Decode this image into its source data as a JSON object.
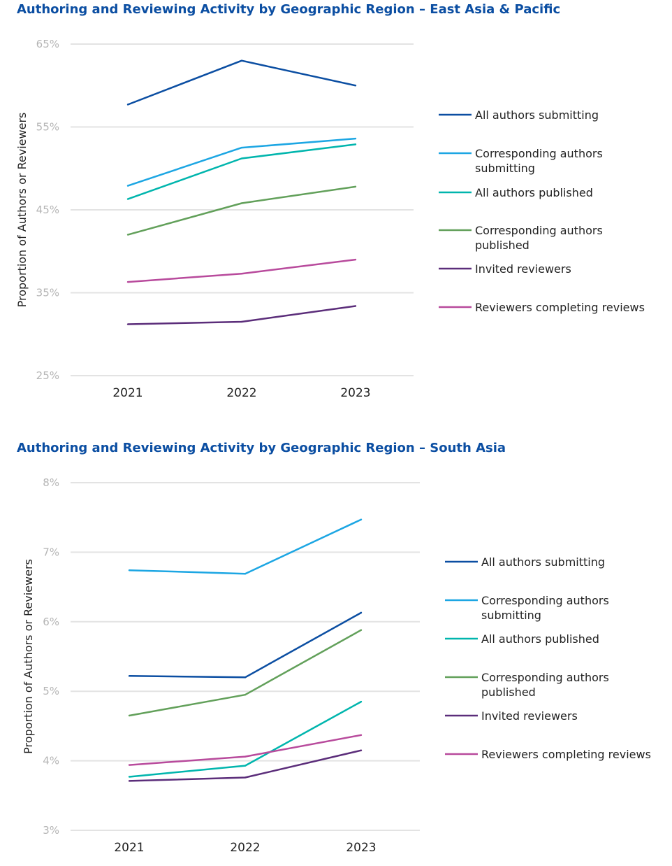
{
  "chart_data": [
    {
      "type": "line",
      "title": "Authoring and Reviewing Activity by Geographic Region – East Asia & Pacific",
      "xlabel": "",
      "ylabel": "Proportion of Authors or Reviewers",
      "categories": [
        "2021",
        "2022",
        "2023"
      ],
      "ylim": [
        25,
        65
      ],
      "yticks": [
        "25%",
        "35%",
        "45%",
        "55%",
        "65%"
      ],
      "ytick_values": [
        25,
        35,
        45,
        55,
        65
      ],
      "grid": true,
      "legend_position": "right",
      "series": [
        {
          "name": "All authors submitting",
          "label_lines": [
            "All authors submitting"
          ],
          "color": "#0b4ea2",
          "values": [
            57.7,
            63.0,
            60.0
          ]
        },
        {
          "name": "Corresponding authors submitting",
          "label_lines": [
            "Corresponding authors",
            "submitting"
          ],
          "color": "#1ca6e3",
          "values": [
            47.9,
            52.5,
            53.6
          ]
        },
        {
          "name": "All authors published",
          "label_lines": [
            "All authors published"
          ],
          "color": "#00b5ad",
          "values": [
            46.3,
            51.2,
            52.9
          ]
        },
        {
          "name": "Corresponding authors published",
          "label_lines": [
            "Corresponding authors",
            "published"
          ],
          "color": "#62a05a",
          "values": [
            42.0,
            45.8,
            47.8
          ]
        },
        {
          "name": "Invited reviewers",
          "label_lines": [
            "Invited reviewers"
          ],
          "color": "#5b2d7a",
          "values": [
            31.2,
            31.5,
            33.4
          ]
        },
        {
          "name": "Reviewers completing reviews",
          "label_lines": [
            "Reviewers completing reviews"
          ],
          "color": "#b84a9c",
          "values": [
            36.3,
            37.3,
            39.0
          ]
        }
      ]
    },
    {
      "type": "line",
      "title": "Authoring and Reviewing Activity by Geographic Region – South Asia",
      "xlabel": "",
      "ylabel": "Proportion of Authors or Reviewers",
      "categories": [
        "2021",
        "2022",
        "2023"
      ],
      "ylim": [
        3,
        8
      ],
      "yticks": [
        "3%",
        "4%",
        "5%",
        "6%",
        "7%",
        "8%"
      ],
      "ytick_values": [
        3,
        4,
        5,
        6,
        7,
        8
      ],
      "grid": true,
      "legend_position": "right",
      "series": [
        {
          "name": "All authors submitting",
          "label_lines": [
            "All authors submitting"
          ],
          "color": "#0b4ea2",
          "values": [
            5.22,
            5.2,
            6.13
          ]
        },
        {
          "name": "Corresponding authors submitting",
          "label_lines": [
            "Corresponding authors",
            "submitting"
          ],
          "color": "#1ca6e3",
          "values": [
            6.74,
            6.69,
            7.47
          ]
        },
        {
          "name": "All authors published",
          "label_lines": [
            "All authors published"
          ],
          "color": "#00b5ad",
          "values": [
            3.77,
            3.93,
            4.85
          ]
        },
        {
          "name": "Corresponding authors published",
          "label_lines": [
            "Corresponding authors",
            "published"
          ],
          "color": "#62a05a",
          "values": [
            4.65,
            4.95,
            5.88
          ]
        },
        {
          "name": "Invited reviewers",
          "label_lines": [
            "Invited reviewers"
          ],
          "color": "#5b2d7a",
          "values": [
            3.71,
            3.76,
            4.15
          ]
        },
        {
          "name": "Reviewers completing reviews",
          "label_lines": [
            "Reviewers completing reviews"
          ],
          "color": "#b84a9c",
          "values": [
            3.94,
            4.06,
            4.37
          ]
        }
      ]
    }
  ]
}
